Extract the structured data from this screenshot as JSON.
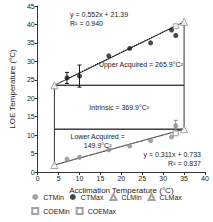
{
  "chart_data": {
    "type": "scatter",
    "x_label": "Acclimation Temperature (°C)",
    "y_label": "LOE Temperature (°C)",
    "xlim": [
      0,
      40
    ],
    "xticks": [
      0,
      5,
      10,
      15,
      20,
      25,
      30,
      35,
      40
    ],
    "ylim": [
      0,
      45
    ],
    "yticks": [
      0,
      5,
      10,
      15,
      20,
      25,
      30,
      35,
      40,
      45
    ],
    "grid": false,
    "legend": "bottom",
    "series": [
      {
        "name": "CTMin",
        "color": "#8c8c8c",
        "marker": "circle",
        "x": [
          7,
          10,
          17,
          22,
          27,
          32,
          33
        ],
        "values": [
          3.5,
          4,
          6,
          7,
          8.5,
          9.5,
          12.5
        ],
        "errors": [
          null,
          null,
          null,
          null,
          null,
          null,
          1.5
        ]
      },
      {
        "name": "CTMax",
        "color": "#1a1a1a",
        "marker": "circle",
        "x": [
          7,
          10,
          17,
          22,
          27,
          32,
          33
        ],
        "values": [
          25.5,
          26,
          31.5,
          33.5,
          35,
          38.5,
          37
        ],
        "errors": [
          1.5,
          3,
          null,
          null,
          null,
          null,
          null
        ]
      },
      {
        "name": "CLMin",
        "color": "#8c8c8c",
        "marker": "triangle_open",
        "x": [
          4,
          35
        ],
        "values": [
          1.9,
          11.6
        ],
        "errors": [
          null,
          null
        ]
      },
      {
        "name": "CLMax",
        "color": "#8c8c8c",
        "marker": "triangle_open",
        "x": [
          4,
          35
        ],
        "values": [
          23.5,
          40.7
        ],
        "errors": [
          null,
          null
        ]
      },
      {
        "name": "COEMin",
        "color": "#8c8c8c",
        "marker": "square_open",
        "x": [
          33
        ],
        "values": [
          10.5
        ],
        "errors": [
          null
        ]
      },
      {
        "name": "COEMax",
        "color": "#8c8c8c",
        "marker": "square_open",
        "x": [
          33
        ],
        "values": [
          39.5
        ],
        "errors": [
          null
        ]
      }
    ],
    "trendlines": [
      {
        "series": "CTMax",
        "slope": 0.552,
        "intercept": 21.39,
        "x_range": [
          7,
          33
        ],
        "color": "#1a1a1a",
        "line_style": "dotted",
        "label": [
          "y = 0.552x + 21.39",
          "R² = 0.940"
        ]
      },
      {
        "series": "CTMin",
        "slope": 0.311,
        "intercept": 0.733,
        "x_range": [
          7,
          33
        ],
        "color": "#8c8c8c",
        "line_style": "dotted",
        "label": [
          "y = 0.311x + 0.733",
          "R² = 0.837"
        ]
      }
    ],
    "regions": [
      {
        "label": [
          "Upper Acquired = 265.9°C²"
        ],
        "color": "#333333",
        "points": [
          [
            4,
            23.5
          ],
          [
            35,
            23.5
          ],
          [
            35,
            40.7
          ]
        ]
      },
      {
        "label": [
          "Intrinsic = 369.9°C²"
        ],
        "color": "#333333",
        "points": [
          [
            4,
            11.6
          ],
          [
            35,
            11.6
          ],
          [
            35,
            23.5
          ],
          [
            4,
            23.5
          ]
        ]
      },
      {
        "label": [
          "Lower Acquired =",
          "149.9°C²"
        ],
        "color": "#333333",
        "points": [
          [
            4,
            1.9
          ],
          [
            4,
            11.6
          ],
          [
            35,
            11.6
          ]
        ]
      }
    ]
  }
}
